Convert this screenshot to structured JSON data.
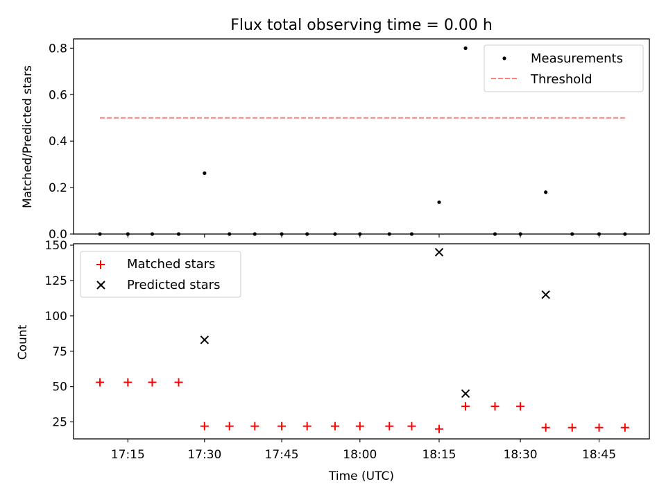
{
  "chart_data": [
    {
      "type": "scatter",
      "title": "Flux total observing time = 0.00 h",
      "xlabel": "",
      "ylabel": "Matched/Predicted stars",
      "ylim": [
        0,
        0.84
      ],
      "yticks": [
        0.0,
        0.2,
        0.4,
        0.6,
        0.8
      ],
      "ytick_labels": [
        "0.0",
        "0.2",
        "0.4",
        "0.6",
        "0.8"
      ],
      "legend_position": "top-right",
      "series": [
        {
          "name": "Measurements",
          "kind": "points",
          "color": "#000000",
          "x": [
            0,
            5.5,
            10.3,
            15.5,
            20.6,
            25.5,
            30.5,
            35.8,
            40.8,
            46.3,
            51.2,
            57.0,
            61.4,
            66.8,
            72.0,
            77.8,
            82.8,
            87.8,
            93.0,
            98.3,
            103.4
          ],
          "y": [
            0,
            0,
            0,
            0,
            0.262,
            0,
            0,
            0,
            0,
            0,
            0,
            0,
            0,
            0.137,
            0.8,
            0,
            0,
            0.18,
            0,
            0,
            0
          ]
        },
        {
          "name": "Threshold",
          "kind": "dashed-line",
          "color": "#ff7f7f",
          "x": [
            0,
            103.4
          ],
          "y": [
            0.5,
            0.5
          ]
        }
      ]
    },
    {
      "type": "scatter",
      "xlabel": "Time (UTC)",
      "ylabel": "Count",
      "ylim": [
        13,
        151
      ],
      "yticks": [
        25,
        50,
        75,
        100,
        125,
        150
      ],
      "ytick_labels": [
        "25",
        "50",
        "75",
        "100",
        "125",
        "150"
      ],
      "xticks": [
        5.5,
        20.6,
        35.8,
        51.2,
        66.8,
        82.8,
        98.3
      ],
      "xtick_labels": [
        "17:15",
        "17:30",
        "17:45",
        "18:00",
        "18:15",
        "18:30",
        "18:45"
      ],
      "xlim": [
        -5.2,
        108.2
      ],
      "legend_position": "top-left",
      "series": [
        {
          "name": "Matched stars",
          "marker": "plus",
          "color": "#ff0000",
          "x": [
            0,
            5.5,
            10.3,
            15.5,
            20.6,
            25.5,
            30.5,
            35.8,
            40.8,
            46.3,
            51.2,
            57.0,
            61.4,
            66.8,
            72.0,
            77.8,
            82.8,
            87.8,
            93.0,
            98.3,
            103.4
          ],
          "y": [
            53,
            53,
            53,
            53,
            22,
            22,
            22,
            22,
            22,
            22,
            22,
            22,
            22,
            20,
            36,
            36,
            36,
            21,
            21,
            21,
            21
          ]
        },
        {
          "name": "Predicted stars",
          "marker": "x",
          "color": "#000000",
          "x": [
            20.6,
            66.8,
            72.0,
            87.8
          ],
          "y": [
            83,
            145,
            45,
            115
          ]
        }
      ]
    }
  ]
}
